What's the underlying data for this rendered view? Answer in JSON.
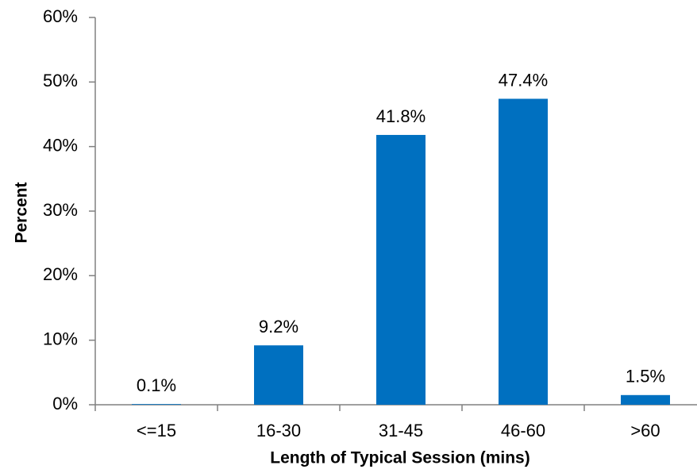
{
  "chart_data": {
    "type": "bar",
    "categories": [
      "<=15",
      "16-30",
      "31-45",
      "46-60",
      ">60"
    ],
    "values": [
      0.1,
      9.2,
      41.8,
      47.4,
      1.5
    ],
    "data_labels": [
      "0.1%",
      "9.2%",
      "41.8%",
      "47.4%",
      "1.5%"
    ],
    "xlabel": "Length of Typical Session (mins)",
    "ylabel": "Percent",
    "ylim": [
      0,
      60
    ],
    "yticks": [
      0,
      10,
      20,
      30,
      40,
      50,
      60
    ],
    "ytick_labels": [
      "0%",
      "10%",
      "20%",
      "30%",
      "40%",
      "50%",
      "60%"
    ],
    "grid": false,
    "legend": "none",
    "bar_color": "#0070C0",
    "axis_color": "#808080"
  }
}
